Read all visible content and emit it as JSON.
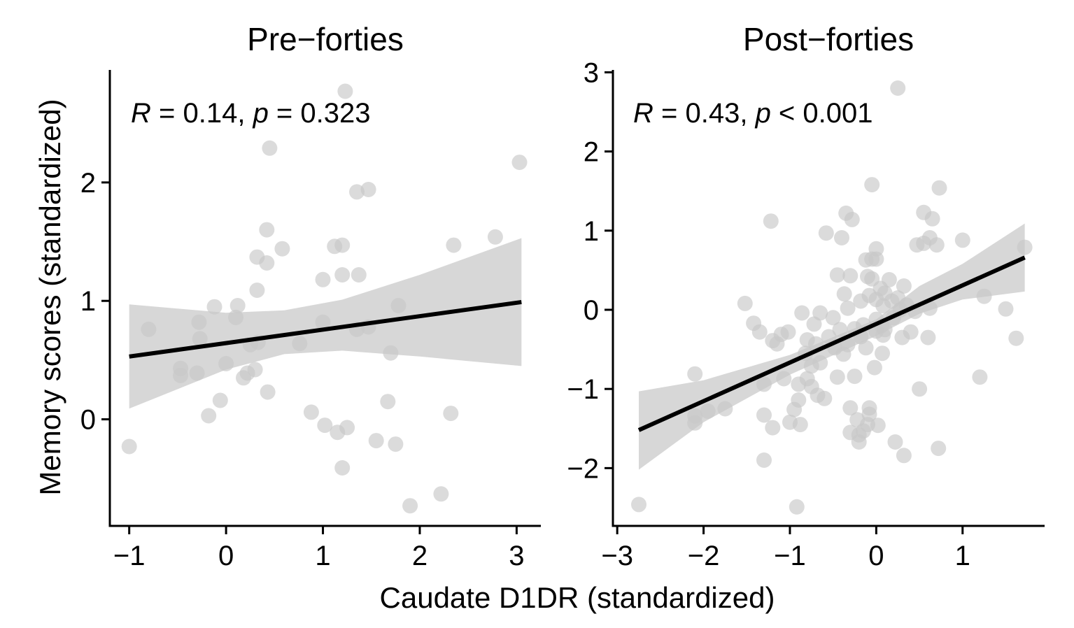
{
  "figure": {
    "shared_xlabel": "Caudate D1DR (standardized)",
    "shared_ylabel": "Memory scores (standardized)"
  },
  "chart_data": [
    {
      "type": "scatter",
      "title": "Pre−forties",
      "xlabel": "Caudate D1DR (standardized)",
      "ylabel": "Memory scores (standardized)",
      "xlim": [
        -1.2,
        3.25
      ],
      "ylim": [
        -0.9,
        2.95
      ],
      "x_ticks": [
        -1,
        0,
        1,
        2,
        3
      ],
      "x_tick_labels": [
        "−1",
        "0",
        "1",
        "2",
        "3"
      ],
      "y_ticks": [
        0,
        1,
        2
      ],
      "y_tick_labels": [
        "0",
        "1",
        "2"
      ],
      "grid": false,
      "annotation": {
        "r_label": "R",
        "r_text": " = 0.14, ",
        "p_label": "p",
        "p_text": " = 0.323"
      },
      "fit": {
        "x0": -1.0,
        "y0": 0.53,
        "x1": 3.05,
        "y1": 0.99
      },
      "ci": [
        {
          "x": -1.0,
          "lo": 0.09,
          "hi": 0.97
        },
        {
          "x": 0.0,
          "lo": 0.42,
          "hi": 0.9
        },
        {
          "x": 0.6,
          "lo": 0.55,
          "hi": 0.92
        },
        {
          "x": 1.2,
          "lo": 0.58,
          "hi": 1.01
        },
        {
          "x": 2.0,
          "lo": 0.53,
          "hi": 1.22
        },
        {
          "x": 3.05,
          "lo": 0.45,
          "hi": 1.53
        }
      ],
      "points": [
        {
          "x": -1.0,
          "y": -0.23
        },
        {
          "x": -0.8,
          "y": 0.76
        },
        {
          "x": -0.47,
          "y": 0.43
        },
        {
          "x": -0.47,
          "y": 0.37
        },
        {
          "x": -0.3,
          "y": 0.39
        },
        {
          "x": -0.28,
          "y": 0.82
        },
        {
          "x": -0.27,
          "y": 0.68
        },
        {
          "x": -0.18,
          "y": 0.03
        },
        {
          "x": -0.12,
          "y": 0.95
        },
        {
          "x": -0.06,
          "y": 0.16
        },
        {
          "x": 0.0,
          "y": 0.47
        },
        {
          "x": 0.1,
          "y": 0.86
        },
        {
          "x": 0.12,
          "y": 0.96
        },
        {
          "x": 0.18,
          "y": 0.35
        },
        {
          "x": 0.22,
          "y": 0.39
        },
        {
          "x": 0.25,
          "y": 0.63
        },
        {
          "x": 0.3,
          "y": 0.42
        },
        {
          "x": 0.32,
          "y": 1.09
        },
        {
          "x": 0.32,
          "y": 1.37
        },
        {
          "x": 0.33,
          "y": 0.65
        },
        {
          "x": 0.42,
          "y": 1.6
        },
        {
          "x": 0.42,
          "y": 1.32
        },
        {
          "x": 0.43,
          "y": 0.23
        },
        {
          "x": 0.45,
          "y": 2.29
        },
        {
          "x": 0.58,
          "y": 1.44
        },
        {
          "x": 0.76,
          "y": 0.64
        },
        {
          "x": 0.88,
          "y": 0.06
        },
        {
          "x": 1.0,
          "y": 1.18
        },
        {
          "x": 1.0,
          "y": 0.82
        },
        {
          "x": 1.02,
          "y": -0.05
        },
        {
          "x": 1.12,
          "y": 1.46
        },
        {
          "x": 1.15,
          "y": -0.11
        },
        {
          "x": 1.2,
          "y": 1.47
        },
        {
          "x": 1.2,
          "y": 1.22
        },
        {
          "x": 1.2,
          "y": -0.41
        },
        {
          "x": 1.23,
          "y": 2.77
        },
        {
          "x": 1.25,
          "y": -0.07
        },
        {
          "x": 1.35,
          "y": 1.92
        },
        {
          "x": 1.35,
          "y": 0.76
        },
        {
          "x": 1.37,
          "y": 1.22
        },
        {
          "x": 1.47,
          "y": 1.94
        },
        {
          "x": 1.47,
          "y": 0.78
        },
        {
          "x": 1.55,
          "y": -0.18
        },
        {
          "x": 1.67,
          "y": 0.15
        },
        {
          "x": 1.7,
          "y": 0.56
        },
        {
          "x": 1.75,
          "y": -0.21
        },
        {
          "x": 1.78,
          "y": 0.96
        },
        {
          "x": 1.9,
          "y": -0.73
        },
        {
          "x": 2.22,
          "y": -0.63
        },
        {
          "x": 2.32,
          "y": 0.05
        },
        {
          "x": 2.35,
          "y": 1.47
        },
        {
          "x": 2.78,
          "y": 1.54
        },
        {
          "x": 3.03,
          "y": 2.17
        }
      ]
    },
    {
      "type": "scatter",
      "title": "Post−forties",
      "xlabel": "Caudate D1DR (standardized)",
      "ylabel": "Memory scores (standardized)",
      "xlim": [
        -3.05,
        1.95
      ],
      "ylim": [
        -2.73,
        3.03
      ],
      "x_ticks": [
        -3,
        -2,
        -1,
        0,
        1
      ],
      "x_tick_labels": [
        "−3",
        "−2",
        "−1",
        "0",
        "1"
      ],
      "y_ticks": [
        -2,
        -1,
        0,
        1,
        2,
        3
      ],
      "y_tick_labels": [
        "−2",
        "−1",
        "0",
        "1",
        "2",
        "3"
      ],
      "grid": false,
      "annotation": {
        "r_label": "R",
        "r_text": " = 0.43, ",
        "p_label": "p",
        "p_text": " < 0.001"
      },
      "fit": {
        "x0": -2.75,
        "y0": -1.52,
        "x1": 1.72,
        "y1": 0.66
      },
      "ci": [
        {
          "x": -2.75,
          "lo": -2.02,
          "hi": -1.03
        },
        {
          "x": -2.0,
          "lo": -1.42,
          "hi": -0.89
        },
        {
          "x": -1.0,
          "lo": -0.82,
          "hi": -0.57
        },
        {
          "x": 0.0,
          "lo": -0.33,
          "hi": -0.12
        },
        {
          "x": 0.5,
          "lo": -0.05,
          "hi": 0.3
        },
        {
          "x": 1.0,
          "lo": 0.13,
          "hi": 0.58
        },
        {
          "x": 1.72,
          "lo": 0.23,
          "hi": 1.09
        }
      ],
      "points": [
        {
          "x": -2.75,
          "y": -2.46
        },
        {
          "x": -2.1,
          "y": -0.81
        },
        {
          "x": -2.1,
          "y": -1.34
        },
        {
          "x": -2.1,
          "y": -1.43
        },
        {
          "x": -1.95,
          "y": -1.28
        },
        {
          "x": -1.75,
          "y": -1.25
        },
        {
          "x": -1.52,
          "y": 0.08
        },
        {
          "x": -1.42,
          "y": -0.17
        },
        {
          "x": -1.35,
          "y": -0.28
        },
        {
          "x": -1.3,
          "y": -0.94
        },
        {
          "x": -1.3,
          "y": -1.33
        },
        {
          "x": -1.3,
          "y": -1.9
        },
        {
          "x": -1.22,
          "y": 1.12
        },
        {
          "x": -1.2,
          "y": -0.39
        },
        {
          "x": -1.2,
          "y": -1.49
        },
        {
          "x": -1.15,
          "y": -0.43
        },
        {
          "x": -1.1,
          "y": -0.31
        },
        {
          "x": -1.07,
          "y": -0.87
        },
        {
          "x": -1.02,
          "y": -0.28
        },
        {
          "x": -1.0,
          "y": -1.42
        },
        {
          "x": -0.95,
          "y": -1.26
        },
        {
          "x": -0.92,
          "y": -2.49
        },
        {
          "x": -0.9,
          "y": -0.94
        },
        {
          "x": -0.9,
          "y": -1.14
        },
        {
          "x": -0.88,
          "y": -1.45
        },
        {
          "x": -0.86,
          "y": -0.04
        },
        {
          "x": -0.82,
          "y": -0.55
        },
        {
          "x": -0.8,
          "y": -0.38
        },
        {
          "x": -0.8,
          "y": -0.87
        },
        {
          "x": -0.75,
          "y": -0.71
        },
        {
          "x": -0.75,
          "y": -0.97
        },
        {
          "x": -0.72,
          "y": -0.18
        },
        {
          "x": -0.7,
          "y": -0.43
        },
        {
          "x": -0.68,
          "y": -1.08
        },
        {
          "x": -0.65,
          "y": -0.04
        },
        {
          "x": -0.65,
          "y": -0.67
        },
        {
          "x": -0.6,
          "y": -1.12
        },
        {
          "x": -0.58,
          "y": 0.97
        },
        {
          "x": -0.55,
          "y": -0.34
        },
        {
          "x": -0.5,
          "y": -0.1
        },
        {
          "x": -0.48,
          "y": -0.48
        },
        {
          "x": -0.45,
          "y": 0.44
        },
        {
          "x": -0.45,
          "y": -0.85
        },
        {
          "x": -0.42,
          "y": -0.25
        },
        {
          "x": -0.4,
          "y": 0.91
        },
        {
          "x": -0.38,
          "y": -0.56
        },
        {
          "x": -0.37,
          "y": 0.2
        },
        {
          "x": -0.35,
          "y": 1.22
        },
        {
          "x": -0.33,
          "y": 0.02
        },
        {
          "x": -0.33,
          "y": -0.44
        },
        {
          "x": -0.3,
          "y": -1.55
        },
        {
          "x": -0.3,
          "y": 0.43
        },
        {
          "x": -0.3,
          "y": -1.24
        },
        {
          "x": -0.28,
          "y": 1.14
        },
        {
          "x": -0.25,
          "y": -0.24
        },
        {
          "x": -0.25,
          "y": -0.84
        },
        {
          "x": -0.22,
          "y": -1.39
        },
        {
          "x": -0.2,
          "y": -1.67
        },
        {
          "x": -0.2,
          "y": -1.58
        },
        {
          "x": -0.18,
          "y": 0.11
        },
        {
          "x": -0.18,
          "y": -0.34
        },
        {
          "x": -0.15,
          "y": -0.19
        },
        {
          "x": -0.15,
          "y": -1.53
        },
        {
          "x": -0.12,
          "y": 0.63
        },
        {
          "x": -0.12,
          "y": -0.48
        },
        {
          "x": -0.1,
          "y": 0.42
        },
        {
          "x": -0.1,
          "y": -1.45
        },
        {
          "x": -0.08,
          "y": -1.32
        },
        {
          "x": -0.08,
          "y": -1.24
        },
        {
          "x": -0.08,
          "y": 0.18
        },
        {
          "x": -0.05,
          "y": 0.39
        },
        {
          "x": -0.05,
          "y": 0.64
        },
        {
          "x": -0.02,
          "y": -0.73
        },
        {
          "x": 0.0,
          "y": 0.77
        },
        {
          "x": 0.0,
          "y": 0.64
        },
        {
          "x": 0.0,
          "y": -0.12
        },
        {
          "x": 0.0,
          "y": 0.13
        },
        {
          "x": 0.0,
          "y": -0.27
        },
        {
          "x": 0.02,
          "y": -1.46
        },
        {
          "x": 0.05,
          "y": 0.27
        },
        {
          "x": 0.06,
          "y": -0.2
        },
        {
          "x": 0.07,
          "y": -0.55
        },
        {
          "x": 0.08,
          "y": 0.05
        },
        {
          "x": 0.08,
          "y": -0.32
        },
        {
          "x": 0.1,
          "y": 0.21
        },
        {
          "x": 0.1,
          "y": -0.25
        },
        {
          "x": 0.15,
          "y": 0.38
        },
        {
          "x": 0.18,
          "y": 0.11
        },
        {
          "x": 0.2,
          "y": -0.1
        },
        {
          "x": 0.22,
          "y": -1.67
        },
        {
          "x": 0.25,
          "y": 0.15
        },
        {
          "x": 0.25,
          "y": 2.8
        },
        {
          "x": 0.28,
          "y": 0.0
        },
        {
          "x": 0.3,
          "y": -0.35
        },
        {
          "x": 0.32,
          "y": -1.84
        },
        {
          "x": 0.32,
          "y": 0.3
        },
        {
          "x": 0.35,
          "y": 0.06
        },
        {
          "x": 0.4,
          "y": -0.28
        },
        {
          "x": 0.45,
          "y": -0.02
        },
        {
          "x": 0.47,
          "y": 0.82
        },
        {
          "x": 0.5,
          "y": -1.0
        },
        {
          "x": 0.55,
          "y": 0.84
        },
        {
          "x": 0.6,
          "y": -0.35
        },
        {
          "x": 0.62,
          "y": 0.91
        },
        {
          "x": 0.62,
          "y": 0.02
        },
        {
          "x": 0.65,
          "y": 1.15
        },
        {
          "x": 0.7,
          "y": 0.82
        },
        {
          "x": 0.72,
          "y": -1.75
        },
        {
          "x": 0.73,
          "y": 1.54
        },
        {
          "x": 1.0,
          "y": 0.88
        },
        {
          "x": 1.2,
          "y": -0.85
        },
        {
          "x": 1.25,
          "y": 0.17
        },
        {
          "x": 1.5,
          "y": 0.01
        },
        {
          "x": 1.62,
          "y": -0.36
        },
        {
          "x": 1.72,
          "y": 0.79
        },
        {
          "x": -0.05,
          "y": 1.58
        },
        {
          "x": 0.55,
          "y": 1.23
        }
      ]
    }
  ]
}
